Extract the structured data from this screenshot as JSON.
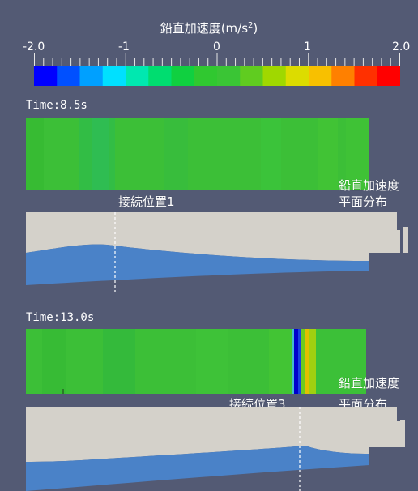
{
  "legend": {
    "title_prefix": "鉛直加速度(m/s",
    "title_sup": "2",
    "title_suffix": ")",
    "ticks": [
      "-2.0",
      "-1",
      "0",
      "1",
      "2.0"
    ],
    "range": [
      -2.0,
      2.0
    ],
    "colors": [
      "#0000ff",
      "#0050ff",
      "#00a0ff",
      "#00e0ff",
      "#00e8b0",
      "#00dd70",
      "#10d040",
      "#30c830",
      "#3ac535",
      "#60cc20",
      "#a0d800",
      "#dcdc00",
      "#f8c000",
      "#ff8000",
      "#ff3000",
      "#ff0000"
    ]
  },
  "panels": [
    {
      "time": "Time:8.5s",
      "connection_label": "接続位置1",
      "map_label_line1": "鉛直加速度",
      "map_label_line2": "平面分布"
    },
    {
      "time": "Time:13.0s",
      "connection_label": "接続位置3",
      "map_label_line1": "鉛直加速度",
      "map_label_line2": "平面分布"
    }
  ]
}
